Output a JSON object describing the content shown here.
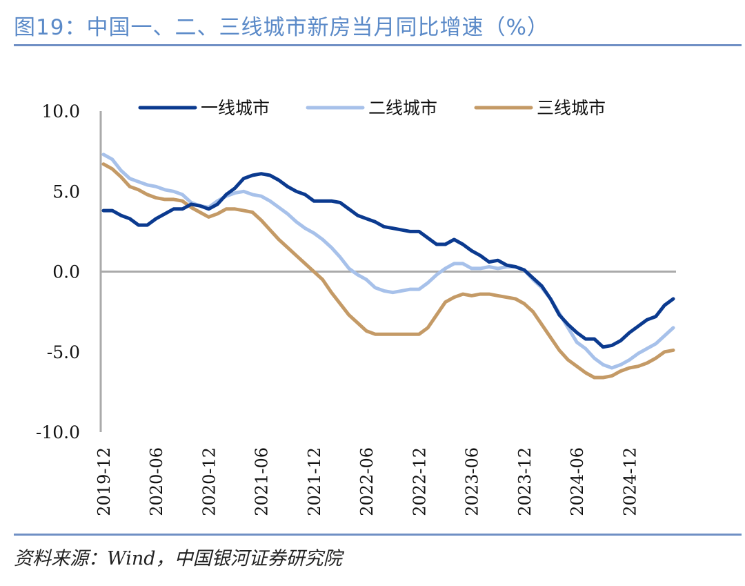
{
  "header": {
    "title": "图19：中国一、二、三线城市新房当月同比增速（%）"
  },
  "footer": {
    "source": "资料来源：Wind，中国银河证券研究院"
  },
  "colors": {
    "tier1": "#0b3a8f",
    "tier2": "#a7c1ea",
    "tier3": "#c49a66",
    "negative_tick": "#e0001b",
    "axis": "#aaaaaa",
    "title": "#5b8ac8"
  },
  "chart_data": {
    "type": "line",
    "title": "",
    "xlabel": "",
    "ylabel": "",
    "ylim": [
      -10,
      10
    ],
    "y_ticks": [
      "10.0",
      "5.0",
      "0.0",
      "-5.0",
      "-10.0"
    ],
    "x_tick_labels": [
      "2019-12",
      "2020-06",
      "2020-12",
      "2021-06",
      "2021-12",
      "2022-06",
      "2022-12",
      "2023-06",
      "2023-12",
      "2024-06",
      "2024-12"
    ],
    "legend_position": "top",
    "grid": false,
    "categories": [
      "2019-12",
      "2020-01",
      "2020-02",
      "2020-03",
      "2020-04",
      "2020-05",
      "2020-06",
      "2020-07",
      "2020-08",
      "2020-09",
      "2020-10",
      "2020-11",
      "2020-12",
      "2021-01",
      "2021-02",
      "2021-03",
      "2021-04",
      "2021-05",
      "2021-06",
      "2021-07",
      "2021-08",
      "2021-09",
      "2021-10",
      "2021-11",
      "2021-12",
      "2022-01",
      "2022-02",
      "2022-03",
      "2022-04",
      "2022-05",
      "2022-06",
      "2022-07",
      "2022-08",
      "2022-09",
      "2022-10",
      "2022-11",
      "2022-12",
      "2023-01",
      "2023-02",
      "2023-03",
      "2023-04",
      "2023-05",
      "2023-06",
      "2023-07",
      "2023-08",
      "2023-09",
      "2023-10",
      "2023-11",
      "2023-12",
      "2024-01",
      "2024-02",
      "2024-03",
      "2024-04",
      "2024-05",
      "2024-06",
      "2024-07",
      "2024-08",
      "2024-09",
      "2024-10",
      "2024-11",
      "2024-12",
      "2025-01",
      "2025-02",
      "2025-03",
      "2025-04",
      "2025-05"
    ],
    "series": [
      {
        "name": "一线城市",
        "values": [
          3.8,
          3.8,
          3.5,
          3.3,
          2.9,
          2.9,
          3.3,
          3.6,
          3.9,
          3.9,
          4.2,
          4.1,
          3.9,
          4.2,
          4.8,
          5.2,
          5.8,
          6.0,
          6.1,
          6.0,
          5.7,
          5.3,
          5.0,
          4.8,
          4.4,
          4.4,
          4.4,
          4.3,
          3.9,
          3.5,
          3.3,
          3.1,
          2.8,
          2.7,
          2.6,
          2.5,
          2.5,
          2.1,
          1.7,
          1.7,
          2.0,
          1.7,
          1.3,
          1.0,
          0.6,
          0.7,
          0.4,
          0.3,
          0.1,
          -0.4,
          -0.9,
          -1.7,
          -2.7,
          -3.3,
          -3.8,
          -4.2,
          -4.2,
          -4.7,
          -4.6,
          -4.3,
          -3.8,
          -3.4,
          -3.0,
          -2.8,
          -2.1,
          -1.7
        ]
      },
      {
        "name": "二线城市",
        "values": [
          7.3,
          7.0,
          6.3,
          5.8,
          5.6,
          5.4,
          5.3,
          5.1,
          5.0,
          4.8,
          4.3,
          4.1,
          4.0,
          4.4,
          4.7,
          4.9,
          5.0,
          4.8,
          4.7,
          4.4,
          4.0,
          3.6,
          3.1,
          2.7,
          2.4,
          2.0,
          1.5,
          0.9,
          0.2,
          -0.2,
          -0.5,
          -1.0,
          -1.2,
          -1.3,
          -1.2,
          -1.1,
          -1.1,
          -0.7,
          -0.2,
          0.2,
          0.5,
          0.5,
          0.2,
          0.2,
          0.3,
          0.2,
          0.3,
          0.3,
          0.1,
          -0.5,
          -1.0,
          -1.7,
          -2.6,
          -3.5,
          -4.4,
          -4.8,
          -5.4,
          -5.8,
          -6.0,
          -5.8,
          -5.5,
          -5.1,
          -4.8,
          -4.5,
          -4.0,
          -3.5
        ]
      },
      {
        "name": "三线城市",
        "values": [
          6.7,
          6.4,
          5.9,
          5.3,
          5.1,
          4.8,
          4.6,
          4.5,
          4.5,
          4.4,
          4.0,
          3.7,
          3.4,
          3.6,
          3.9,
          3.9,
          3.8,
          3.7,
          3.2,
          2.6,
          2.0,
          1.5,
          1.0,
          0.5,
          0.0,
          -0.5,
          -1.3,
          -2.0,
          -2.7,
          -3.2,
          -3.7,
          -3.9,
          -3.9,
          -3.9,
          -3.9,
          -3.9,
          -3.9,
          -3.5,
          -2.7,
          -1.9,
          -1.6,
          -1.4,
          -1.5,
          -1.4,
          -1.4,
          -1.5,
          -1.6,
          -1.7,
          -2.0,
          -2.5,
          -3.3,
          -4.1,
          -4.9,
          -5.5,
          -5.9,
          -6.3,
          -6.6,
          -6.6,
          -6.5,
          -6.2,
          -6.0,
          -5.9,
          -5.7,
          -5.4,
          -5.0,
          -4.9
        ]
      }
    ]
  }
}
